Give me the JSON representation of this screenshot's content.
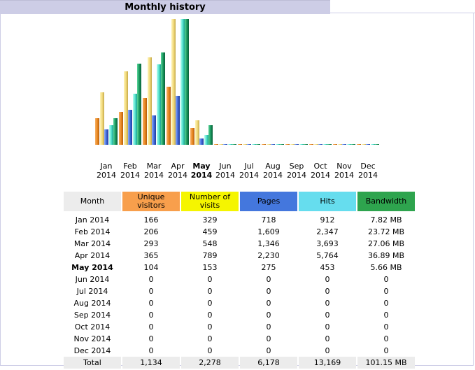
{
  "header": {
    "title": "Monthly history"
  },
  "colors": {
    "unique_visitors": "#f89f4c",
    "visits": "#f5f500",
    "pages": "#4477dd",
    "hits": "#66ddee",
    "bandwidth": "#2ea44e",
    "title_tab": "#cdcde6"
  },
  "chart_data": {
    "type": "bar",
    "categories": [
      "Jan 2014",
      "Feb 2014",
      "Mar 2014",
      "Apr 2014",
      "May 2014",
      "Jun 2014",
      "Jul 2014",
      "Aug 2014",
      "Sep 2014",
      "Oct 2014",
      "Nov 2014",
      "Dec 2014"
    ],
    "current_month_index": 4,
    "series": [
      {
        "key": "unique_visitors",
        "values": [
          166,
          206,
          293,
          365,
          104,
          0,
          0,
          0,
          0,
          0,
          0,
          0
        ]
      },
      {
        "key": "visits",
        "values": [
          329,
          459,
          548,
          789,
          153,
          0,
          0,
          0,
          0,
          0,
          0,
          0
        ]
      },
      {
        "key": "pages",
        "values": [
          718,
          1609,
          1346,
          2230,
          275,
          0,
          0,
          0,
          0,
          0,
          0,
          0
        ]
      },
      {
        "key": "hits",
        "values": [
          912,
          2347,
          3693,
          5764,
          453,
          0,
          0,
          0,
          0,
          0,
          0,
          0
        ]
      },
      {
        "key": "bandwidth_mb",
        "values": [
          7.82,
          23.72,
          27.06,
          36.89,
          5.66,
          0,
          0,
          0,
          0,
          0,
          0,
          0
        ]
      }
    ],
    "grid": false
  },
  "month_labels": [
    {
      "m": "Jan",
      "y": "2014"
    },
    {
      "m": "Feb",
      "y": "2014"
    },
    {
      "m": "Mar",
      "y": "2014"
    },
    {
      "m": "Apr",
      "y": "2014"
    },
    {
      "m": "May",
      "y": "2014"
    },
    {
      "m": "Jun",
      "y": "2014"
    },
    {
      "m": "Jul",
      "y": "2014"
    },
    {
      "m": "Aug",
      "y": "2014"
    },
    {
      "m": "Sep",
      "y": "2014"
    },
    {
      "m": "Oct",
      "y": "2014"
    },
    {
      "m": "Nov",
      "y": "2014"
    },
    {
      "m": "Dec",
      "y": "2014"
    }
  ],
  "table": {
    "headers": {
      "month": "Month",
      "unique_1": "Unique",
      "unique_2": "visitors",
      "visits_1": "Number of",
      "visits_2": "visits",
      "pages": "Pages",
      "hits": "Hits",
      "bandwidth": "Bandwidth"
    },
    "rows": [
      {
        "month": "Jan 2014",
        "unique": "166",
        "visits": "329",
        "pages": "718",
        "hits": "912",
        "bandwidth": "7.82 MB"
      },
      {
        "month": "Feb 2014",
        "unique": "206",
        "visits": "459",
        "pages": "1,609",
        "hits": "2,347",
        "bandwidth": "23.72 MB"
      },
      {
        "month": "Mar 2014",
        "unique": "293",
        "visits": "548",
        "pages": "1,346",
        "hits": "3,693",
        "bandwidth": "27.06 MB"
      },
      {
        "month": "Apr 2014",
        "unique": "365",
        "visits": "789",
        "pages": "2,230",
        "hits": "5,764",
        "bandwidth": "36.89 MB"
      },
      {
        "month": "May 2014",
        "unique": "104",
        "visits": "153",
        "pages": "275",
        "hits": "453",
        "bandwidth": "5.66 MB"
      },
      {
        "month": "Jun 2014",
        "unique": "0",
        "visits": "0",
        "pages": "0",
        "hits": "0",
        "bandwidth": "0"
      },
      {
        "month": "Jul 2014",
        "unique": "0",
        "visits": "0",
        "pages": "0",
        "hits": "0",
        "bandwidth": "0"
      },
      {
        "month": "Aug 2014",
        "unique": "0",
        "visits": "0",
        "pages": "0",
        "hits": "0",
        "bandwidth": "0"
      },
      {
        "month": "Sep 2014",
        "unique": "0",
        "visits": "0",
        "pages": "0",
        "hits": "0",
        "bandwidth": "0"
      },
      {
        "month": "Oct 2014",
        "unique": "0",
        "visits": "0",
        "pages": "0",
        "hits": "0",
        "bandwidth": "0"
      },
      {
        "month": "Nov 2014",
        "unique": "0",
        "visits": "0",
        "pages": "0",
        "hits": "0",
        "bandwidth": "0"
      },
      {
        "month": "Dec 2014",
        "unique": "0",
        "visits": "0",
        "pages": "0",
        "hits": "0",
        "bandwidth": "0"
      }
    ],
    "total": {
      "month": "Total",
      "unique": "1,134",
      "visits": "2,278",
      "pages": "6,178",
      "hits": "13,169",
      "bandwidth": "101.15 MB"
    }
  }
}
